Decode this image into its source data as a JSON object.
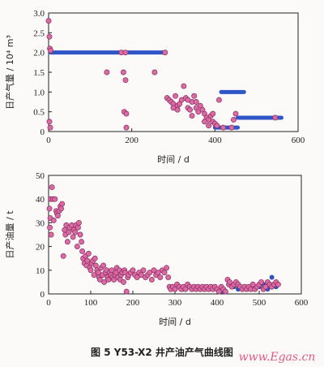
{
  "caption": "图 5   Y53-X2 井产油产气曲线图",
  "watermark": "www.Egas.cn",
  "colors": {
    "gas": "#2f56c9",
    "oil": "#2f56c9",
    "marker_fill": "#d96aa3",
    "marker_edge": "#8a2d5e",
    "axis": "#222222"
  },
  "chart_data": [
    {
      "type": "scatter",
      "xlabel": "时间 / d",
      "ylabel": "日产气量 / 10⁴ m³",
      "xlim": [
        0,
        600
      ],
      "ylim": [
        0,
        3.0
      ],
      "xticks": [
        0,
        200,
        400,
        600
      ],
      "yticks": [
        0,
        0.5,
        1.0,
        1.5,
        2.0,
        2.5,
        3.0
      ],
      "xticklabels": [
        "0",
        "200",
        "400",
        "600"
      ],
      "yticklabels": [
        "0",
        "0.5",
        "1.0",
        "1.5",
        "2.0",
        "2.5",
        "3.0"
      ],
      "grid": false,
      "segments": [
        {
          "x": [
            5,
            280
          ],
          "y": 2.0
        },
        {
          "x": [
            415,
            470
          ],
          "y": 1.0
        },
        {
          "x": [
            455,
            560
          ],
          "y": 0.35
        },
        {
          "x": [
            400,
            455
          ],
          "y": 0.1
        }
      ],
      "points": [
        [
          0,
          2.8
        ],
        [
          2,
          2.4
        ],
        [
          3,
          2.1
        ],
        [
          5,
          2.05
        ],
        [
          2,
          0.25
        ],
        [
          4,
          0.1
        ],
        [
          140,
          1.5
        ],
        [
          175,
          2.0
        ],
        [
          185,
          2.0
        ],
        [
          180,
          1.5
        ],
        [
          185,
          1.3
        ],
        [
          182,
          0.5
        ],
        [
          187,
          0.45
        ],
        [
          187,
          0.1
        ],
        [
          255,
          1.5
        ],
        [
          280,
          2.0
        ],
        [
          285,
          0.85
        ],
        [
          290,
          0.8
        ],
        [
          295,
          0.75
        ],
        [
          300,
          0.7
        ],
        [
          305,
          0.9
        ],
        [
          310,
          0.65
        ],
        [
          315,
          0.7
        ],
        [
          320,
          0.8
        ],
        [
          325,
          1.15
        ],
        [
          330,
          0.85
        ],
        [
          335,
          0.6
        ],
        [
          340,
          0.55
        ],
        [
          345,
          0.75
        ],
        [
          350,
          0.9
        ],
        [
          355,
          0.6
        ],
        [
          360,
          0.5
        ],
        [
          365,
          0.65
        ],
        [
          370,
          0.55
        ],
        [
          375,
          0.45
        ],
        [
          380,
          0.35
        ],
        [
          385,
          0.3
        ],
        [
          390,
          0.4
        ],
        [
          395,
          0.25
        ],
        [
          400,
          0.2
        ],
        [
          405,
          0.15
        ],
        [
          410,
          0.8
        ],
        [
          300,
          0.6
        ],
        [
          310,
          0.55
        ],
        [
          335,
          0.8
        ],
        [
          345,
          0.4
        ],
        [
          355,
          0.75
        ],
        [
          375,
          0.25
        ],
        [
          385,
          0.15
        ],
        [
          395,
          0.45
        ],
        [
          420,
          0.1
        ],
        [
          440,
          0.1
        ],
        [
          445,
          0.3
        ],
        [
          450,
          0.45
        ],
        [
          545,
          0.35
        ]
      ]
    },
    {
      "type": "scatter",
      "xlabel": "时间 / d",
      "ylabel": "日产油量 / t",
      "xlim": [
        0,
        600
      ],
      "ylim": [
        0,
        50
      ],
      "xticks": [
        0,
        100,
        200,
        300,
        400,
        500,
        600
      ],
      "yticks": [
        0,
        10,
        20,
        30,
        40,
        50
      ],
      "xticklabels": [
        "0",
        "100",
        "200",
        "300",
        "400",
        "500",
        "600"
      ],
      "yticklabels": [
        "0",
        "10",
        "20",
        "30",
        "40",
        "50"
      ],
      "grid": false,
      "points": [
        [
          2,
          36
        ],
        [
          3,
          28
        ],
        [
          4,
          32
        ],
        [
          5,
          40
        ],
        [
          6,
          25
        ],
        [
          8,
          45
        ],
        [
          10,
          40
        ],
        [
          12,
          31
        ],
        [
          15,
          40
        ],
        [
          18,
          35
        ],
        [
          20,
          34
        ],
        [
          22,
          33
        ],
        [
          25,
          35
        ],
        [
          28,
          37
        ],
        [
          30,
          36
        ],
        [
          32,
          38
        ],
        [
          35,
          16
        ],
        [
          38,
          27
        ],
        [
          40,
          25
        ],
        [
          42,
          29
        ],
        [
          45,
          22
        ],
        [
          48,
          26
        ],
        [
          50,
          28
        ],
        [
          55,
          29
        ],
        [
          58,
          24
        ],
        [
          60,
          27
        ],
        [
          63,
          26
        ],
        [
          65,
          29
        ],
        [
          68,
          20
        ],
        [
          70,
          28
        ],
        [
          72,
          30
        ],
        [
          75,
          25
        ],
        [
          78,
          22
        ],
        [
          80,
          18
        ],
        [
          82,
          15
        ],
        [
          85,
          13
        ],
        [
          88,
          16
        ],
        [
          90,
          12
        ],
        [
          92,
          14
        ],
        [
          95,
          17
        ],
        [
          98,
          11
        ],
        [
          100,
          10
        ],
        [
          102,
          13
        ],
        [
          105,
          14
        ],
        [
          108,
          8
        ],
        [
          110,
          15
        ],
        [
          112,
          12
        ],
        [
          115,
          10
        ],
        [
          118,
          9
        ],
        [
          120,
          7
        ],
        [
          122,
          6
        ],
        [
          125,
          11
        ],
        [
          128,
          8
        ],
        [
          130,
          12
        ],
        [
          132,
          5
        ],
        [
          135,
          9
        ],
        [
          138,
          10
        ],
        [
          140,
          7
        ],
        [
          142,
          6
        ],
        [
          145,
          9
        ],
        [
          148,
          8
        ],
        [
          150,
          10
        ],
        [
          152,
          7
        ],
        [
          155,
          6
        ],
        [
          158,
          8
        ],
        [
          160,
          9
        ],
        [
          162,
          11
        ],
        [
          165,
          7
        ],
        [
          168,
          10
        ],
        [
          170,
          6
        ],
        [
          172,
          8
        ],
        [
          175,
          9
        ],
        [
          178,
          5
        ],
        [
          180,
          10
        ],
        [
          182,
          9
        ],
        [
          185,
          1
        ],
        [
          188,
          7
        ],
        [
          190,
          8
        ],
        [
          195,
          9
        ],
        [
          200,
          10
        ],
        [
          205,
          8
        ],
        [
          210,
          7
        ],
        [
          215,
          9
        ],
        [
          220,
          8
        ],
        [
          225,
          10
        ],
        [
          230,
          7
        ],
        [
          235,
          8
        ],
        [
          240,
          9
        ],
        [
          245,
          6
        ],
        [
          250,
          10
        ],
        [
          255,
          8
        ],
        [
          260,
          9
        ],
        [
          265,
          7
        ],
        [
          270,
          10
        ],
        [
          275,
          9
        ],
        [
          280,
          11
        ],
        [
          284,
          7
        ],
        [
          287,
          3
        ],
        [
          290,
          2
        ],
        [
          295,
          3
        ],
        [
          300,
          2
        ],
        [
          305,
          4
        ],
        [
          310,
          3
        ],
        [
          315,
          2
        ],
        [
          320,
          3
        ],
        [
          325,
          2
        ],
        [
          330,
          4
        ],
        [
          335,
          3
        ],
        [
          340,
          2
        ],
        [
          345,
          3
        ],
        [
          350,
          2
        ],
        [
          355,
          3
        ],
        [
          360,
          2
        ],
        [
          365,
          3
        ],
        [
          370,
          2
        ],
        [
          375,
          3
        ],
        [
          380,
          2
        ],
        [
          385,
          3
        ],
        [
          390,
          2
        ],
        [
          395,
          3
        ],
        [
          400,
          2
        ],
        [
          405,
          1
        ],
        [
          410,
          3
        ],
        [
          415,
          2
        ],
        [
          420,
          1
        ],
        [
          425,
          6
        ],
        [
          428,
          4
        ],
        [
          430,
          5
        ],
        [
          435,
          3
        ],
        [
          440,
          4
        ],
        [
          445,
          5
        ],
        [
          450,
          4
        ],
        [
          455,
          3
        ],
        [
          460,
          2
        ],
        [
          465,
          3
        ],
        [
          470,
          2
        ],
        [
          475,
          3
        ],
        [
          480,
          2
        ],
        [
          485,
          4
        ],
        [
          490,
          2
        ],
        [
          495,
          3
        ],
        [
          500,
          4
        ],
        [
          505,
          5
        ],
        [
          510,
          2
        ],
        [
          515,
          3
        ],
        [
          520,
          5
        ],
        [
          525,
          4
        ],
        [
          530,
          3
        ],
        [
          535,
          4
        ],
        [
          540,
          5
        ],
        [
          545,
          4
        ]
      ],
      "blue_points": [
        [
          290,
          3
        ],
        [
          300,
          2
        ],
        [
          310,
          3
        ],
        [
          320,
          2
        ],
        [
          330,
          3
        ],
        [
          340,
          2
        ],
        [
          350,
          3
        ],
        [
          360,
          2
        ],
        [
          370,
          3
        ],
        [
          380,
          2
        ],
        [
          390,
          3
        ],
        [
          400,
          2
        ],
        [
          410,
          1
        ],
        [
          420,
          1
        ],
        [
          440,
          3
        ],
        [
          450,
          2
        ],
        [
          460,
          2
        ],
        [
          470,
          3
        ],
        [
          480,
          2
        ],
        [
          490,
          3
        ],
        [
          500,
          3
        ],
        [
          510,
          4
        ],
        [
          520,
          2
        ],
        [
          530,
          7
        ],
        [
          540,
          3
        ]
      ]
    }
  ]
}
